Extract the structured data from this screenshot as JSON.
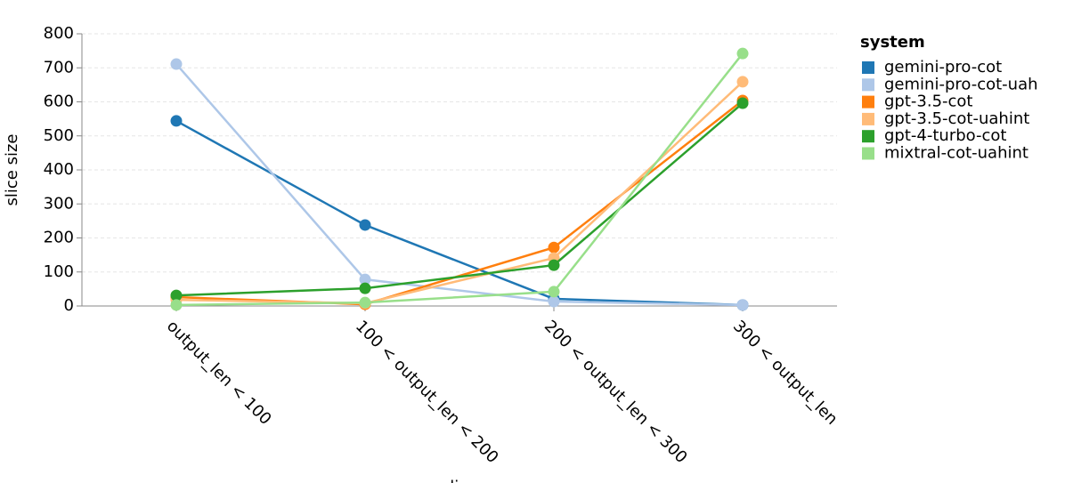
{
  "chart_data": {
    "type": "line",
    "x_label": "slice",
    "y_label": "slice size",
    "legend_title": "system",
    "categories": [
      "output_len < 100",
      "100 < output_len < 200",
      "200 < output_len < 300",
      "300 < output_len"
    ],
    "ylim": [
      0,
      800
    ],
    "yticks": [
      0,
      100,
      200,
      300,
      400,
      500,
      600,
      700,
      800
    ],
    "grid": true,
    "legend": "right",
    "series": [
      {
        "name": "gemini-pro-cot",
        "color": "#1f77b4",
        "values": [
          544,
          238,
          21,
          3
        ]
      },
      {
        "name": "gemini-pro-cot-uah",
        "color": "#aec7e8",
        "values": [
          711,
          78,
          13,
          3
        ]
      },
      {
        "name": "gpt-3.5-cot",
        "color": "#ff7f0e",
        "values": [
          26,
          5,
          172,
          604
        ]
      },
      {
        "name": "gpt-3.5-cot-uahint",
        "color": "#ffbb78",
        "values": [
          18,
          8,
          141,
          659
        ]
      },
      {
        "name": "gpt-4-turbo-cot",
        "color": "#2ca02c",
        "values": [
          31,
          52,
          120,
          596
        ]
      },
      {
        "name": "mixtral-cot-uahint",
        "color": "#98df8a",
        "values": [
          3,
          10,
          42,
          742
        ]
      }
    ]
  }
}
